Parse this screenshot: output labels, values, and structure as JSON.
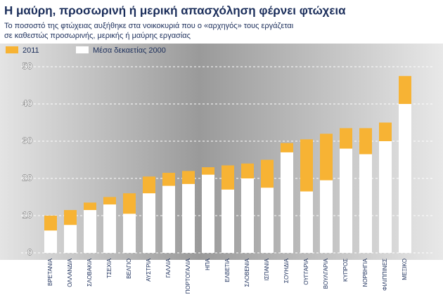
{
  "chart_data": {
    "type": "bar",
    "title": "Η μαύρη, προσωρινή ή μερική απασχόληση φέρνει φτώχεια",
    "subtitle": [
      "Το ποσοστό της φτώχειας αυξήθηκε στα νοικοκυριά που ο «αρχηγός» τους εργάζεται",
      "σε καθεστώς προσωρινής, μερικής ή μαύρης εργασίας"
    ],
    "categories": [
      "ΒΡΕΤΑΝΙΑ",
      "ΟΛΛΑΝΔΙΑ",
      "ΣΛΟΒΑΚΙΑ",
      "ΤΣΕΧΙΑ",
      "ΒΕΛΓΙΟ",
      "ΑΥΣΤΡΙΑ",
      "ΓΑΛΛΙΑ",
      "ΠΟΡΤΟΓΑΛΙΑ",
      "ΗΠΑ",
      "ΕΛΒΕΤΙΑ",
      "ΣΛΟΒΕΝΙΑ",
      "ΙΣΠΑΝΙΑ",
      "ΣΟΥΗΔΙΑ",
      "ΟΥΓΓΑΡΙΑ",
      "ΒΟΥΛΓΑΡΙΑ",
      "ΚΥΠΡΟΣ",
      "ΝΟΡΒΗΓΙΑ",
      "ΦΙΛΙΠΠΙΝΕΣ",
      "ΜΕΞΙΚΟ"
    ],
    "series": [
      {
        "name": "2011",
        "color": "#f7b334",
        "values": [
          10,
          11.5,
          13.5,
          15,
          16,
          20.5,
          21.5,
          22,
          23,
          23.5,
          24,
          25,
          29.5,
          30.5,
          32,
          33.5,
          33.5,
          35,
          47.5
        ]
      },
      {
        "name": "Μέσα δεκαετίας 2000",
        "color": "#ffffff",
        "values": [
          6,
          7.5,
          11.5,
          13,
          10.5,
          16,
          18,
          18.5,
          21,
          17,
          20,
          17.5,
          27,
          16.5,
          19.5,
          28,
          26.5,
          30,
          40
        ]
      }
    ],
    "ylim": [
      0,
      50
    ],
    "yticks": [
      0,
      10,
      20,
      30,
      40,
      50
    ],
    "grid": true
  }
}
